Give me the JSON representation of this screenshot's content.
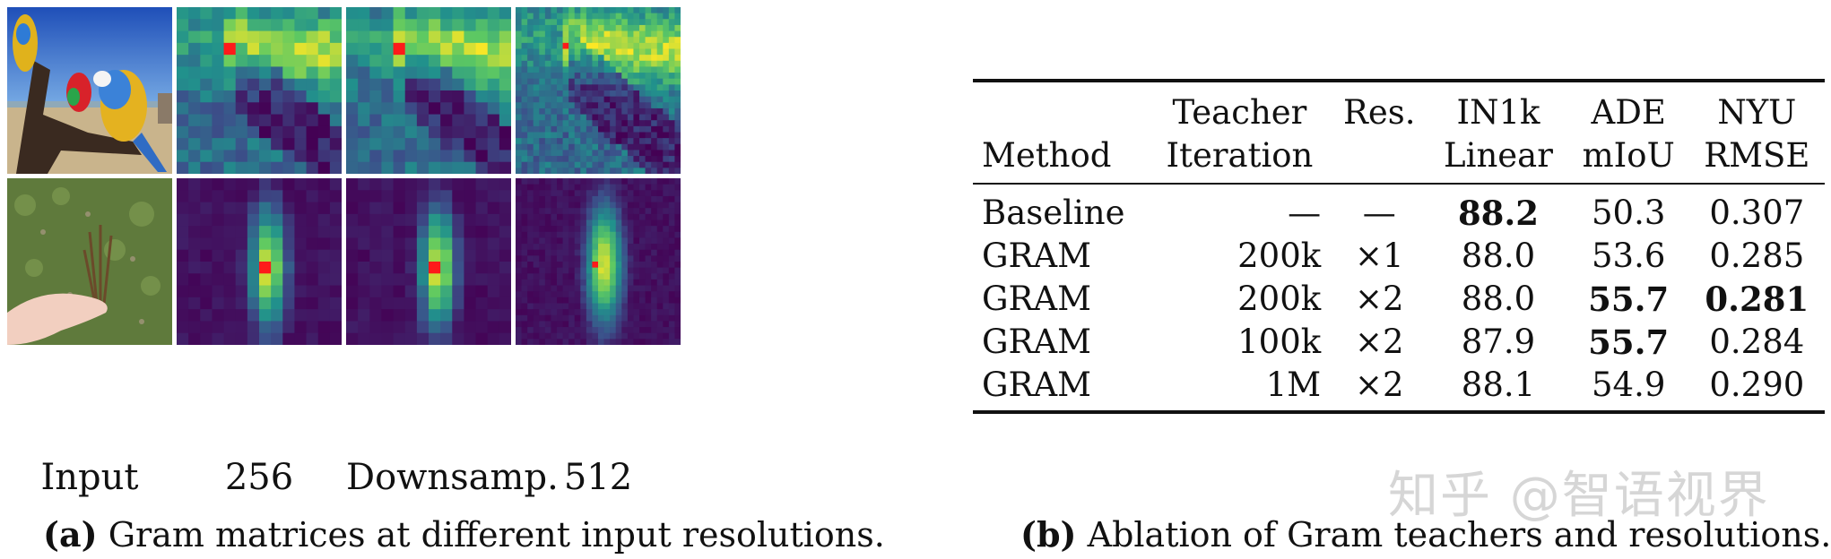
{
  "panel_a": {
    "column_labels": [
      "Input",
      "256",
      "Downsamp.",
      "512"
    ],
    "caption_tag": "(a)",
    "caption_text": "Gram matrices at different input resolutions.",
    "rows": [
      {
        "image": "parrot-photo",
        "description_icon": "parrots-image"
      },
      {
        "image": "grass-hand-photo",
        "description_icon": "hand-grass-image"
      }
    ]
  },
  "panel_b": {
    "caption_tag": "(b)",
    "caption_text": "Ablation of Gram teachers and resolutions.",
    "header_top": [
      "",
      "Teacher",
      "Res.",
      "IN1k",
      "ADE",
      "NYU"
    ],
    "header_bottom": [
      "Method",
      "Iteration",
      "",
      "Linear",
      "mIoU",
      "RMSE"
    ],
    "rows": [
      {
        "method": "Baseline",
        "iteration": "—",
        "res": "—",
        "in1k": "88.2",
        "ade": "50.3",
        "nyu": "0.307"
      },
      {
        "method": "GRAM",
        "iteration": "200k",
        "res": "×1",
        "in1k": "88.0",
        "ade": "53.6",
        "nyu": "0.285"
      },
      {
        "method": "GRAM",
        "iteration": "200k",
        "res": "×2",
        "in1k": "88.0",
        "ade": "55.7",
        "nyu": "0.281"
      },
      {
        "method": "GRAM",
        "iteration": "100k",
        "res": "×2",
        "in1k": "87.9",
        "ade": "55.7",
        "nyu": "0.284"
      },
      {
        "method": "GRAM",
        "iteration": "1M",
        "res": "×2",
        "in1k": "88.1",
        "ade": "54.9",
        "nyu": "0.290"
      }
    ],
    "bold_cells": [
      "0.in1k",
      "2.ade",
      "2.nyu",
      "3.ade"
    ]
  },
  "watermark": "知乎 @智语视界",
  "colors": {
    "text": "#111111",
    "heat_low": "#440154",
    "heat_mid": "#21918c",
    "heat_high": "#fde725",
    "heat_peak": "#ff0000"
  }
}
